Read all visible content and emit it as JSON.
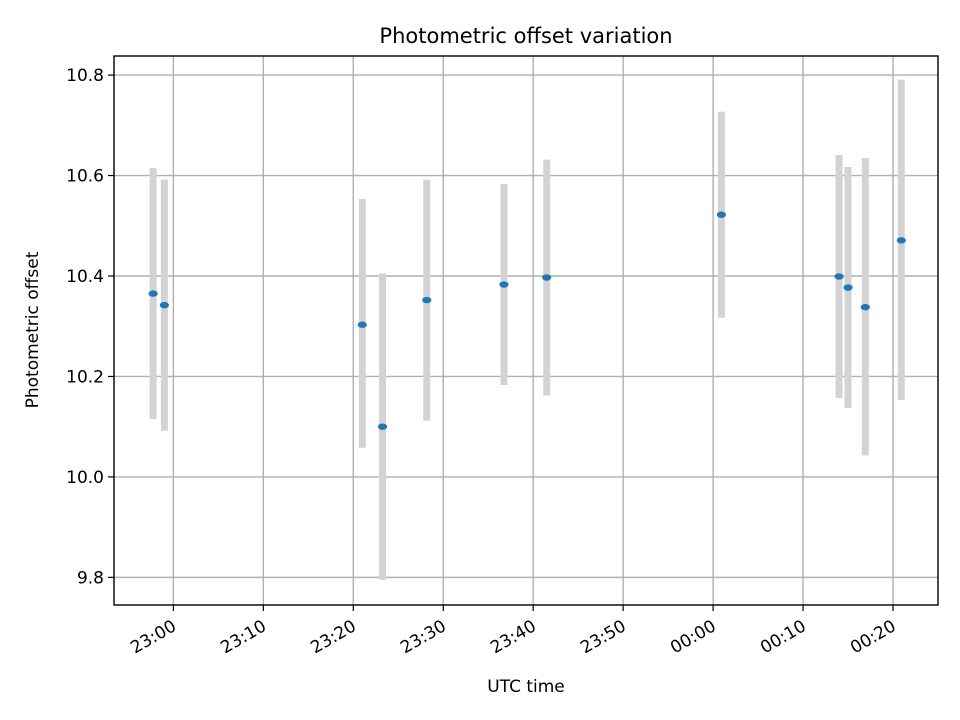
{
  "chart_data": {
    "type": "scatter",
    "title": "Photometric offset variation",
    "xlabel": "UTC time",
    "ylabel": "Photometric offset",
    "x_tick_labels": [
      "23:00",
      "23:10",
      "23:20",
      "23:30",
      "23:40",
      "23:50",
      "00:00",
      "00:10",
      "00:20"
    ],
    "x_tick_minutes": [
      0,
      10,
      20,
      30,
      40,
      50,
      60,
      70,
      80
    ],
    "y_ticks": [
      9.8,
      10.0,
      10.2,
      10.4,
      10.6,
      10.8
    ],
    "y_tick_labels": [
      "9.8",
      "10.0",
      "10.2",
      "10.4",
      "10.6",
      "10.8"
    ],
    "xlim_minutes": [
      -6.6,
      85.0
    ],
    "ylim": [
      9.745,
      10.838
    ],
    "grid": true,
    "x_axis_note": "time values are minutes after 23:00 UTC",
    "marker_color": "#1f77b4",
    "errorbar_color": "#d3d3d3",
    "points": [
      {
        "time": "22:57:45",
        "x": -2.25,
        "y": 10.365,
        "err_low": 0.25,
        "err_high": 0.25
      },
      {
        "time": "22:59:00",
        "x": -1.0,
        "y": 10.342,
        "err_low": 0.25,
        "err_high": 0.25
      },
      {
        "time": "23:21:00",
        "x": 21.0,
        "y": 10.303,
        "err_low": 0.245,
        "err_high": 0.25
      },
      {
        "time": "23:23:15",
        "x": 23.25,
        "y": 10.1,
        "err_low": 0.305,
        "err_high": 0.305
      },
      {
        "time": "23:28:10",
        "x": 28.17,
        "y": 10.352,
        "err_low": 0.24,
        "err_high": 0.24
      },
      {
        "time": "23:36:45",
        "x": 36.75,
        "y": 10.383,
        "err_low": 0.2,
        "err_high": 0.2
      },
      {
        "time": "23:41:30",
        "x": 41.5,
        "y": 10.397,
        "err_low": 0.235,
        "err_high": 0.235
      },
      {
        "time": "00:00:55",
        "x": 60.92,
        "y": 10.522,
        "err_low": 0.205,
        "err_high": 0.205
      },
      {
        "time": "00:14:00",
        "x": 74.0,
        "y": 10.399,
        "err_low": 0.242,
        "err_high": 0.242
      },
      {
        "time": "00:15:00",
        "x": 75.0,
        "y": 10.377,
        "err_low": 0.24,
        "err_high": 0.24
      },
      {
        "time": "00:16:55",
        "x": 76.92,
        "y": 10.338,
        "err_low": 0.295,
        "err_high": 0.297
      },
      {
        "time": "00:20:55",
        "x": 80.92,
        "y": 10.471,
        "err_low": 0.318,
        "err_high": 0.32
      }
    ]
  }
}
